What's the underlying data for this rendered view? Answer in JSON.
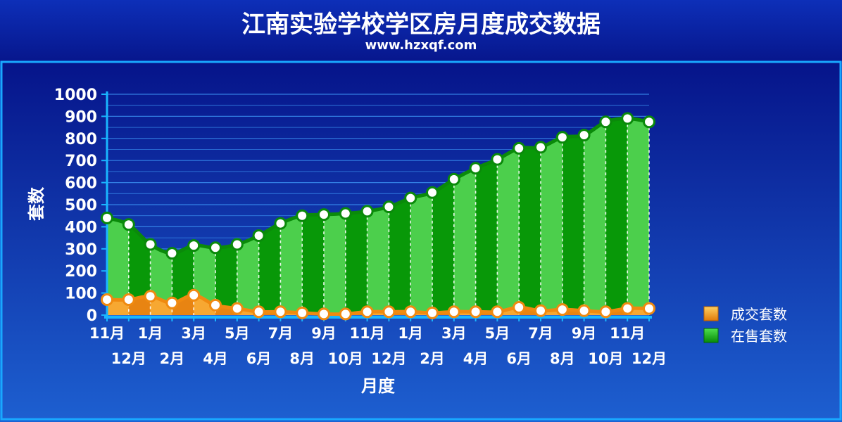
{
  "title": "江南实验学校学区房月度成交数据",
  "subtitle": "www.hzxqf.com",
  "colors": {
    "background_top": "#0a1a9e",
    "background_bottom": "#1a63d4",
    "plot_bg": "#0b2aa8",
    "green_light": "#4ccf4c",
    "green_dark": "#089808",
    "green_line": "#0a8a0a",
    "orange": "#f08a10",
    "orange_area": "#f5a623",
    "marker_fill": "#ffffff",
    "grid": "#3a8ff0",
    "text": "#ffffff"
  },
  "chart_data": {
    "type": "area",
    "title": "江南实验学校学区房月度成交数据",
    "subtitle": "www.hzxqf.com",
    "xlabel": "月度",
    "ylabel": "套数",
    "ylim": [
      0,
      1000
    ],
    "yticks": [
      0,
      100,
      200,
      300,
      400,
      500,
      600,
      700,
      800,
      900,
      1000
    ],
    "grid": true,
    "legend_position": "right",
    "categories": [
      "11月",
      "12月",
      "1月",
      "2月",
      "3月",
      "4月",
      "5月",
      "6月",
      "7月",
      "8月",
      "9月",
      "10月",
      "11月",
      "12月",
      "1月",
      "2月",
      "3月",
      "4月",
      "5月",
      "6月",
      "7月",
      "8月",
      "9月",
      "10月",
      "11月",
      "12月"
    ],
    "series": [
      {
        "name": "成交套数",
        "color": "#f08a10",
        "values": [
          70,
          70,
          85,
          55,
          90,
          45,
          30,
          15,
          15,
          10,
          5,
          5,
          15,
          15,
          15,
          10,
          15,
          15,
          15,
          35,
          20,
          25,
          20,
          15,
          30,
          30
        ]
      },
      {
        "name": "在售套数",
        "color": "#1fc21f",
        "values": [
          440,
          410,
          320,
          280,
          315,
          305,
          320,
          360,
          415,
          450,
          455,
          460,
          470,
          490,
          530,
          555,
          615,
          665,
          705,
          755,
          760,
          805,
          815,
          875,
          890,
          875
        ]
      }
    ]
  }
}
